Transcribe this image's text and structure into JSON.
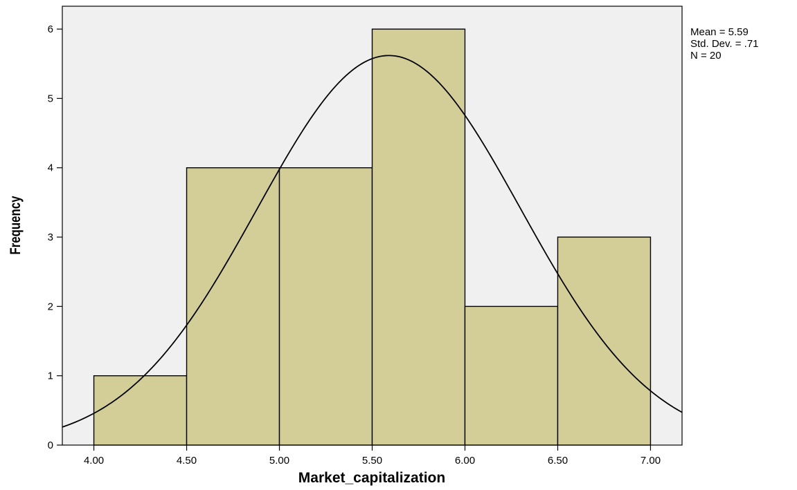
{
  "chart_data": {
    "type": "bar",
    "subtype": "histogram with normal curve",
    "title": "",
    "xlabel": "Market_capitalization",
    "ylabel": "Frequency",
    "bins": [
      {
        "from": 4.0,
        "to": 4.5,
        "count": 1
      },
      {
        "from": 4.5,
        "to": 5.0,
        "count": 4
      },
      {
        "from": 5.0,
        "to": 5.5,
        "count": 4
      },
      {
        "from": 5.5,
        "to": 6.0,
        "count": 6
      },
      {
        "from": 6.0,
        "to": 6.5,
        "count": 2
      },
      {
        "from": 6.5,
        "to": 7.0,
        "count": 3
      }
    ],
    "x_ticks": [
      "4.00",
      "4.50",
      "5.00",
      "5.50",
      "6.00",
      "6.50",
      "7.00"
    ],
    "y_ticks": [
      "0",
      "1",
      "2",
      "3",
      "4",
      "5",
      "6"
    ],
    "xlim": [
      3.83,
      7.17
    ],
    "ylim": [
      0,
      6.33
    ],
    "normal_curve": {
      "mean": 5.59,
      "sd": 0.71,
      "n": 20,
      "bin_width": 0.5
    },
    "stats_text": [
      "Mean = 5.59",
      "Std. Dev. = .71",
      "N = 20"
    ],
    "colors": {
      "plot_background": "#f0f0f0",
      "bar_fill": "#d3ce98",
      "bar_stroke": "#000000",
      "curve": "#000000"
    },
    "grid": false
  }
}
